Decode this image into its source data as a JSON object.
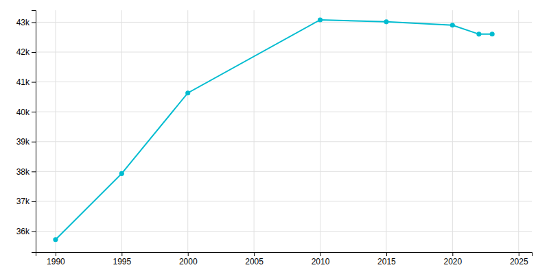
{
  "chart_data": {
    "type": "line",
    "x": [
      1990,
      1995,
      2000,
      2010,
      2015,
      2020,
      2022,
      2023
    ],
    "values": [
      35720,
      37930,
      40630,
      43079,
      43014,
      42900,
      42600,
      42603
    ],
    "color": "#00BCD0",
    "marker": "circle",
    "xlim": [
      1988.5,
      2026
    ],
    "xticks": [
      1990,
      1995,
      2000,
      2005,
      2010,
      2015,
      2020,
      2025
    ],
    "ylim": [
      35300,
      43400
    ],
    "yticks": [
      {
        "value": 36000,
        "label": "36k"
      },
      {
        "value": 37000,
        "label": "37k"
      },
      {
        "value": 38000,
        "label": "38k"
      },
      {
        "value": 39000,
        "label": "39k"
      },
      {
        "value": 40000,
        "label": "40k"
      },
      {
        "value": 41000,
        "label": "41k"
      },
      {
        "value": 42000,
        "label": "42k"
      },
      {
        "value": 43000,
        "label": "43k"
      }
    ],
    "grid": true
  }
}
